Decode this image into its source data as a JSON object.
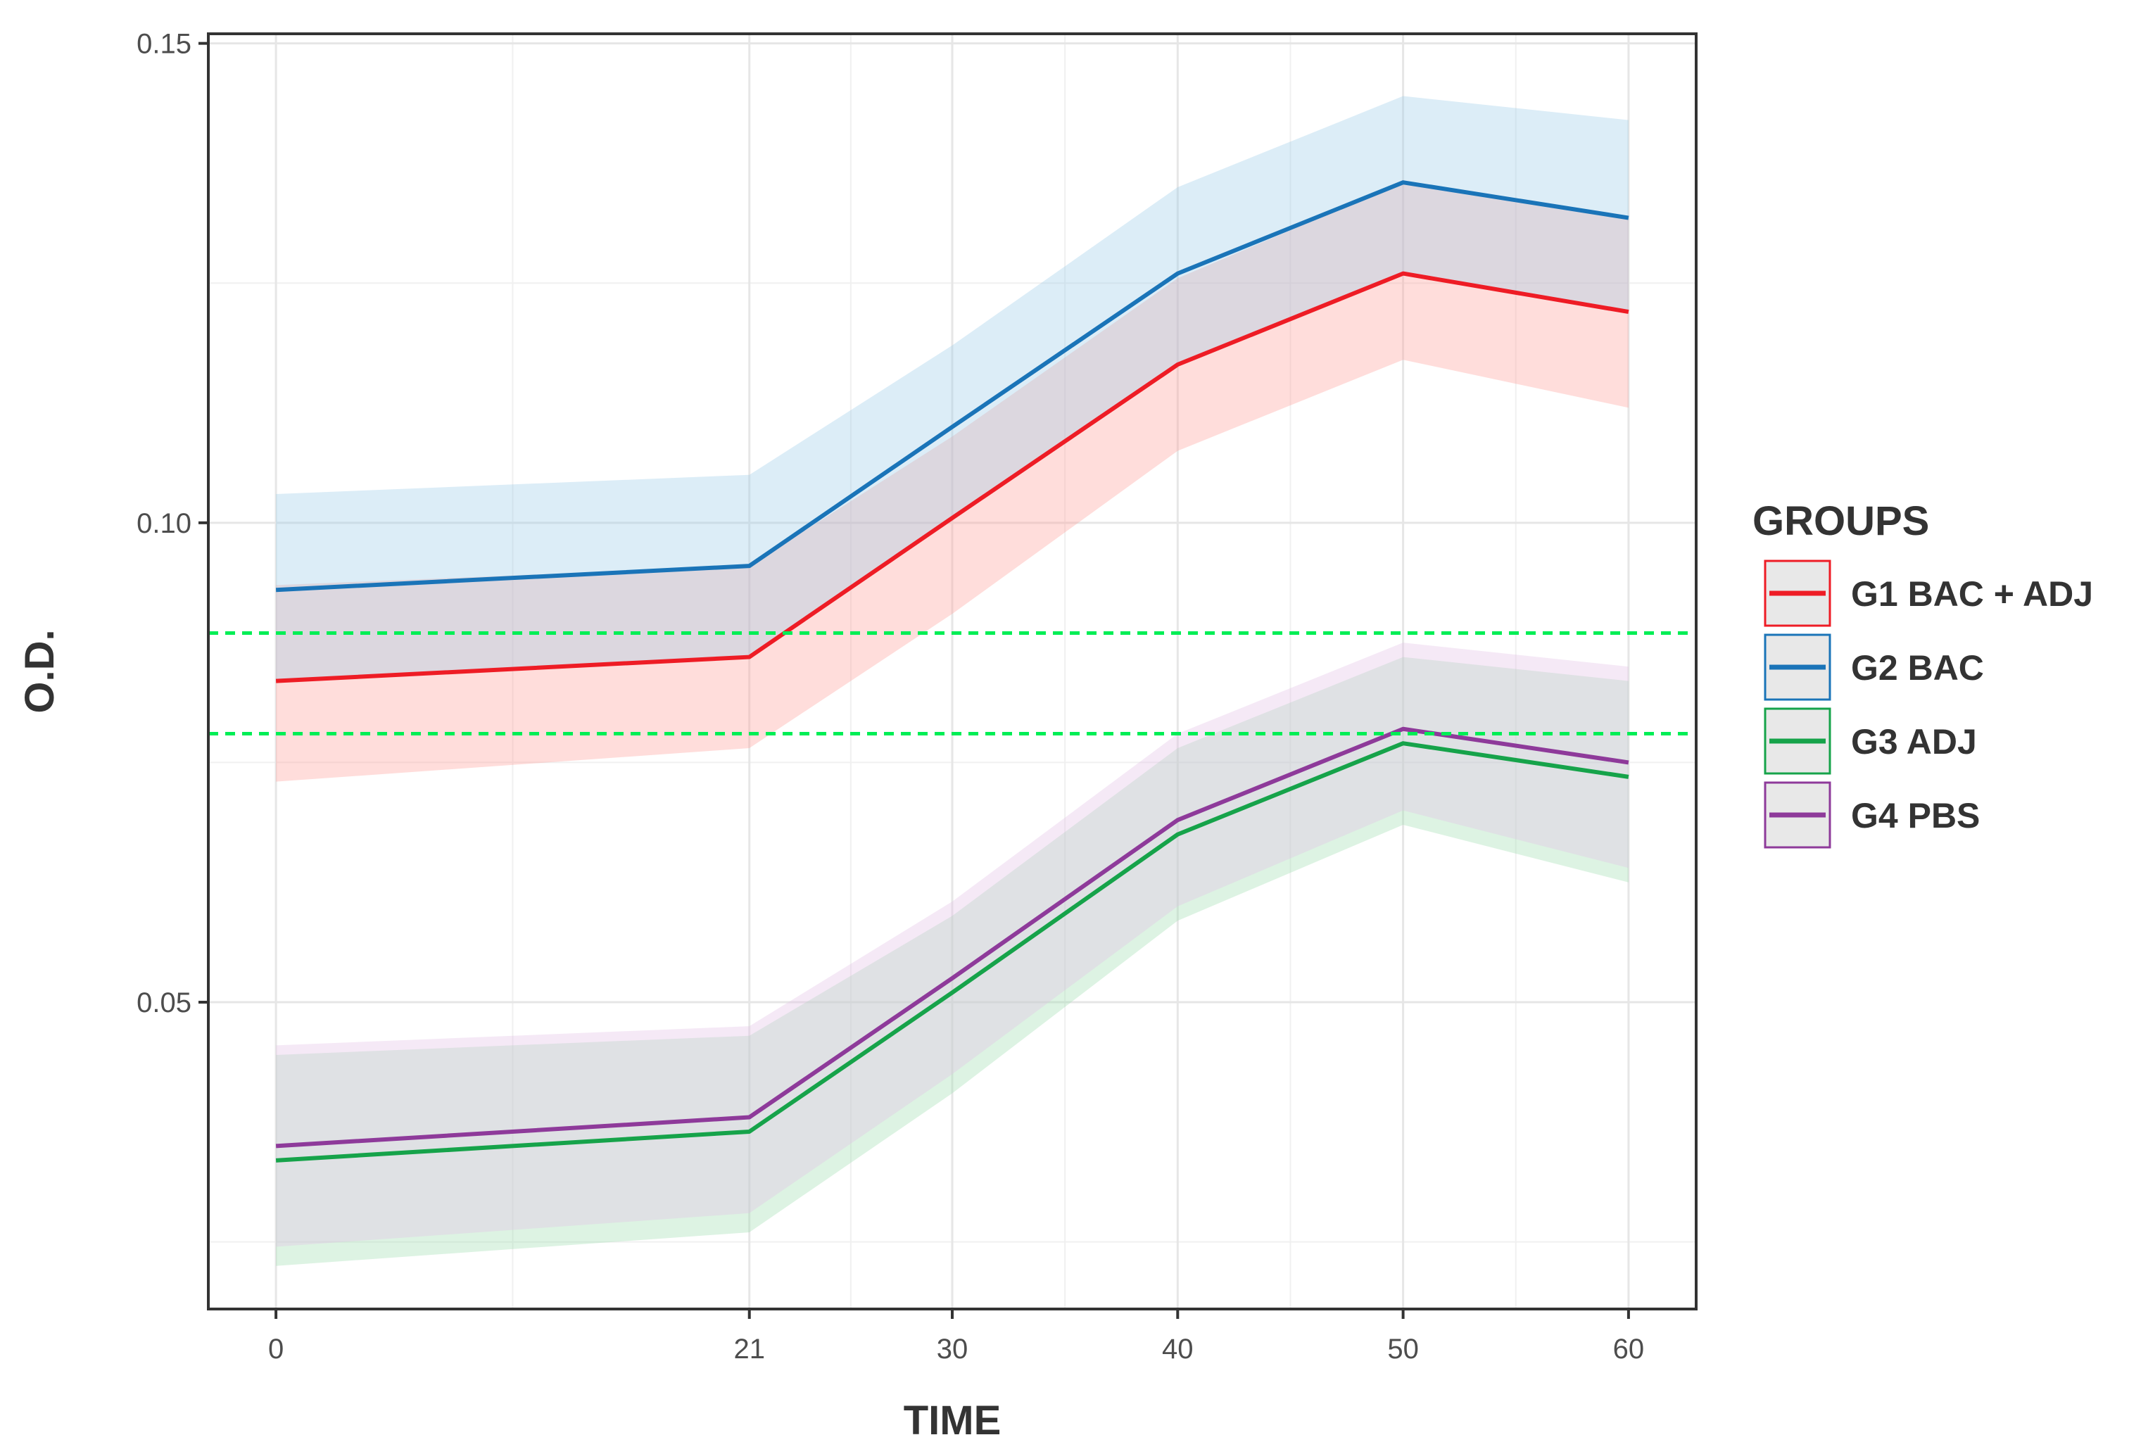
{
  "chart_data": {
    "type": "line",
    "title": "",
    "xlabel": "TIME",
    "ylabel": "O.D.",
    "x": [
      0,
      21,
      30,
      40,
      50,
      60
    ],
    "x_ticks": [
      0,
      21,
      30,
      40,
      50,
      60
    ],
    "x_tick_labels": [
      "0",
      "21",
      "30",
      "40",
      "50",
      "60"
    ],
    "xlim": [
      -3,
      63
    ],
    "y_ticks": [
      0.05,
      0.1,
      0.15
    ],
    "y_tick_labels": [
      "0.05",
      "0.10",
      "0.15"
    ],
    "ylim": [
      0.018,
      0.151
    ],
    "grid": true,
    "legend": {
      "title": "GROUPS",
      "position": "right"
    },
    "series": [
      {
        "name": "G1 BAC + ADJ",
        "color": "#ee1c25",
        "fill": "#ff9d99",
        "values": [
          0.0835,
          0.086,
          0.1005,
          0.1165,
          0.126,
          0.122
        ],
        "lower": [
          0.073,
          0.0765,
          0.0905,
          0.1075,
          0.117,
          0.112
        ],
        "upper": [
          0.0935,
          0.0955,
          0.109,
          0.1255,
          0.1355,
          0.132
        ]
      },
      {
        "name": "G2 BAC",
        "color": "#1a74b8",
        "fill": "#9ccce8",
        "values": [
          0.093,
          0.0955,
          0.11,
          0.126,
          0.1355,
          0.1318
        ],
        "lower": [
          0.0835,
          0.086,
          0.1005,
          0.1165,
          0.126,
          0.122
        ],
        "upper": [
          0.103,
          0.105,
          0.1185,
          0.135,
          0.1445,
          0.142
        ]
      },
      {
        "name": "G3 ADJ",
        "color": "#16a34a",
        "fill": "#9ddcb0",
        "values": [
          0.0335,
          0.0365,
          0.051,
          0.0675,
          0.077,
          0.0735
        ],
        "lower": [
          0.0225,
          0.026,
          0.0405,
          0.0585,
          0.0685,
          0.0625
        ],
        "upper": [
          0.0445,
          0.0465,
          0.059,
          0.0765,
          0.086,
          0.0835
        ]
      },
      {
        "name": "G4 PBS",
        "color": "#8e3a9a",
        "fill": "#e2bfe4",
        "values": [
          0.035,
          0.038,
          0.0525,
          0.069,
          0.0785,
          0.075
        ],
        "lower": [
          0.0245,
          0.028,
          0.0425,
          0.06,
          0.07,
          0.064
        ],
        "upper": [
          0.0455,
          0.0475,
          0.0605,
          0.078,
          0.0875,
          0.085
        ]
      }
    ],
    "reference_lines": [
      {
        "y": 0.0885,
        "color": "#00ee55",
        "style": "dashed"
      },
      {
        "y": 0.078,
        "color": "#00ee55",
        "style": "dashed"
      }
    ]
  }
}
